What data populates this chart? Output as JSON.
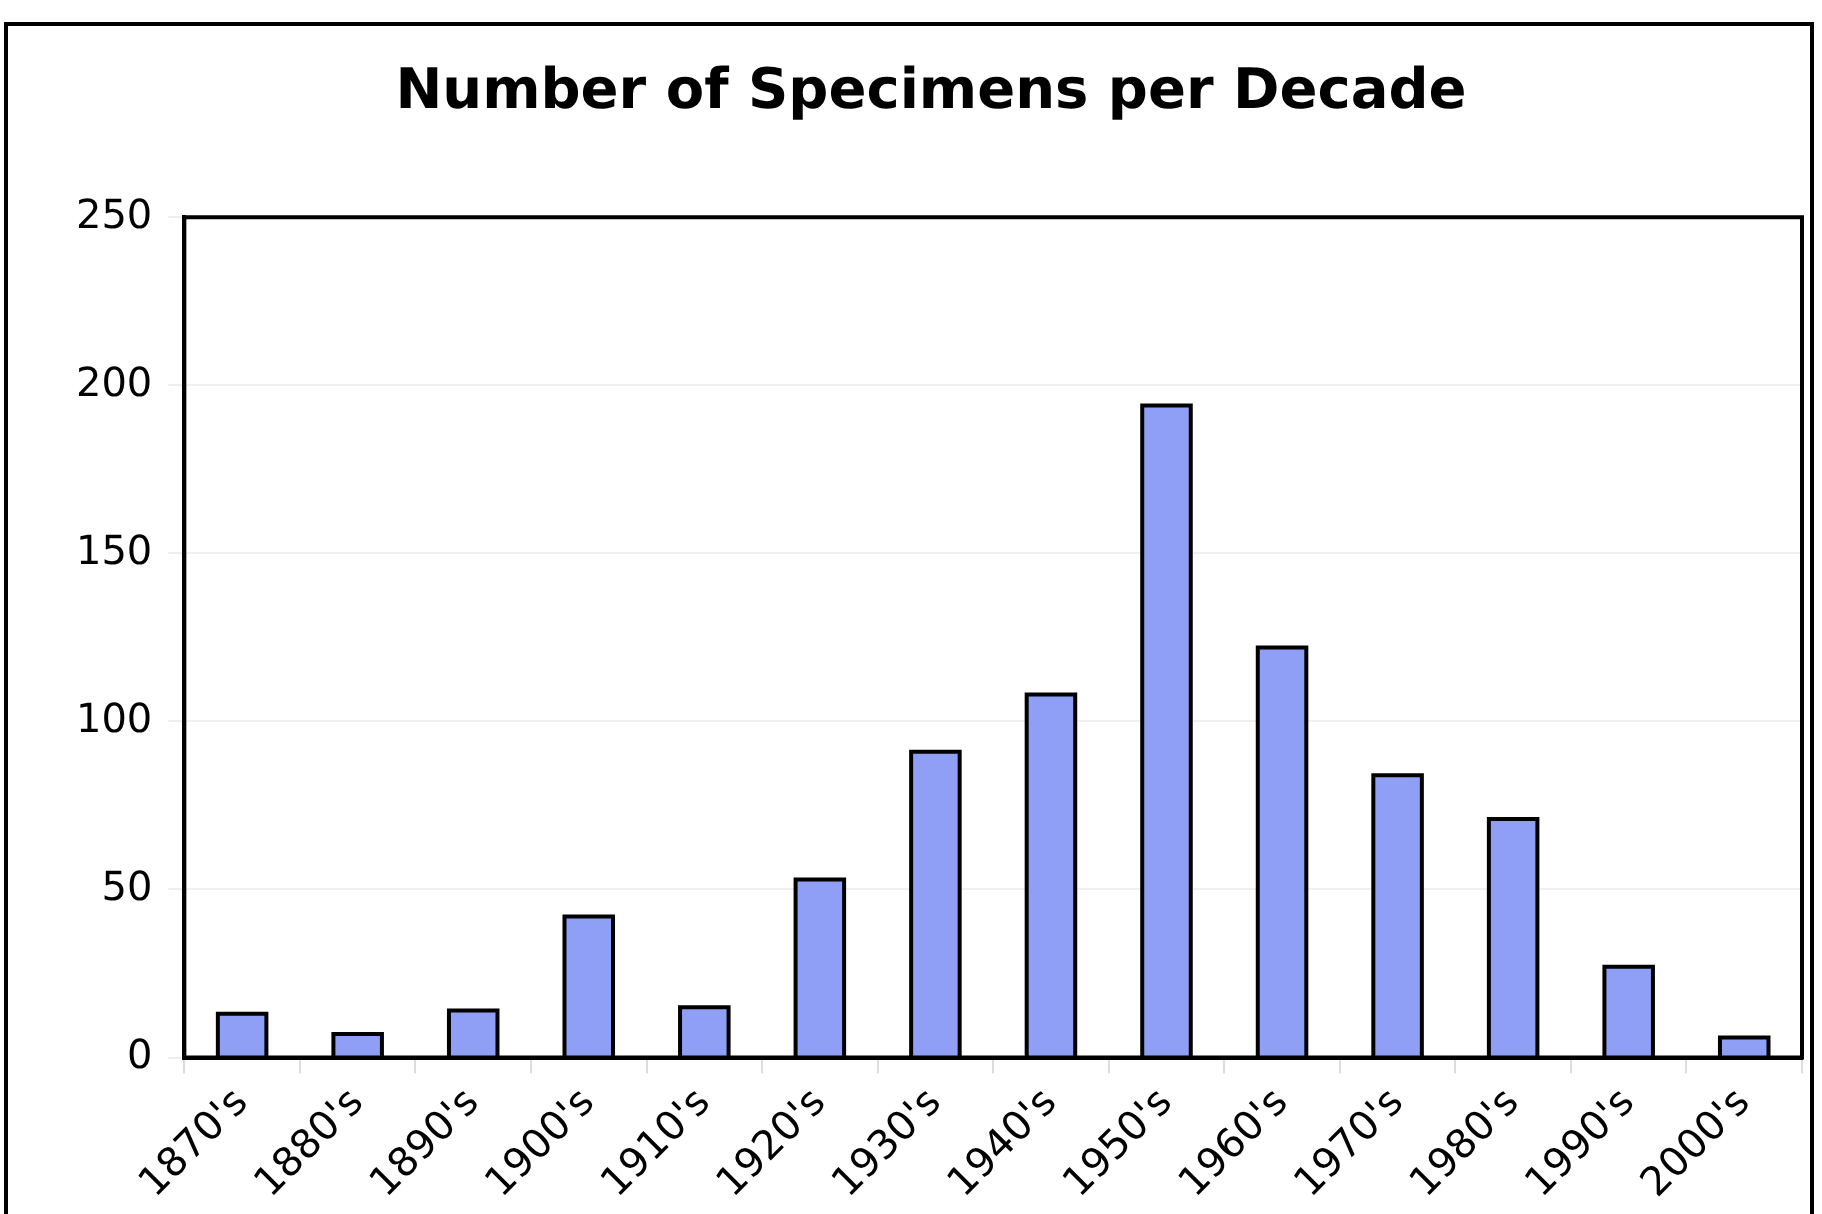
{
  "chart_data": {
    "type": "bar",
    "title": "Number of Specimens per Decade",
    "categories": [
      "1870's",
      "1880's",
      "1890's",
      "1900's",
      "1910's",
      "1920's",
      "1930's",
      "1940's",
      "1950's",
      "1960's",
      "1970's",
      "1980's",
      "1990's",
      "2000's"
    ],
    "values": [
      13,
      7,
      14,
      42,
      15,
      53,
      91,
      108,
      194,
      122,
      84,
      71,
      27,
      6
    ],
    "color": "#8f9ff5",
    "ylim": [
      0,
      250
    ],
    "yticks": [
      0,
      50,
      100,
      150,
      200,
      250
    ],
    "grid": "y",
    "legend": false
  }
}
